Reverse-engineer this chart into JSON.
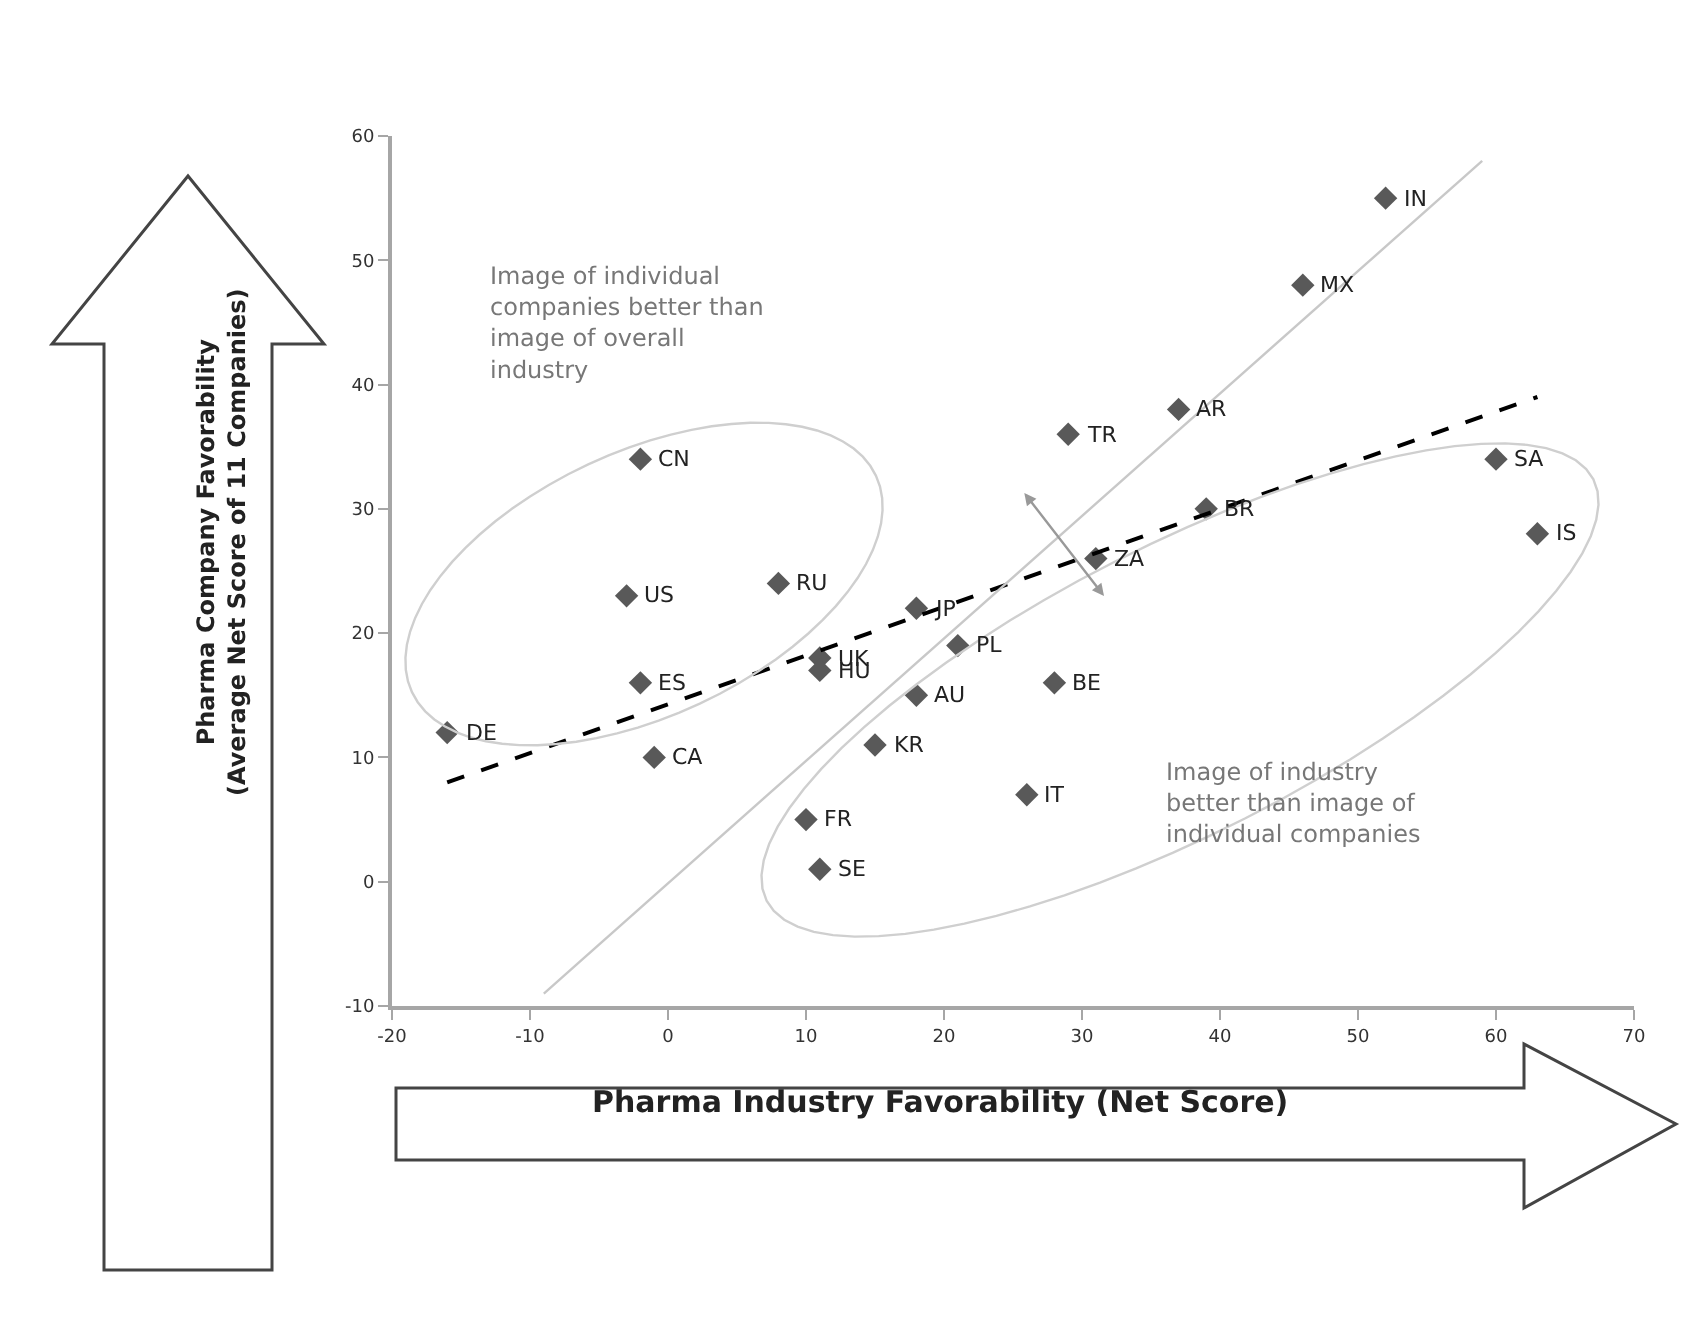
{
  "chart_data": {
    "type": "scatter",
    "xlabel": "Pharma Industry Favorability (Net Score)",
    "ylabel": "Pharma Company Favorability\n(Average Net Score of 11 Companies)",
    "x": [
      52,
      46,
      37,
      29,
      -2,
      60,
      39,
      31,
      63,
      8,
      -3,
      18,
      21,
      11,
      11,
      -2,
      28,
      18,
      -16,
      15,
      -1,
      26,
      10,
      11
    ],
    "series": [
      {
        "type": "scatter",
        "color": "#595959",
        "marker": "diamond",
        "values": [
          55,
          48,
          38,
          36,
          34,
          34,
          30,
          26,
          28,
          24,
          23,
          22,
          19,
          18,
          17,
          16,
          16,
          15,
          12,
          11,
          10,
          7,
          5,
          1
        ]
      },
      {
        "type": "line",
        "color": "#000000",
        "line_style": "dashed",
        "marker": "none",
        "x": [
          -16,
          63
        ],
        "values": [
          8,
          39
        ]
      },
      {
        "type": "line",
        "color": "#c8c8c8",
        "line_style": "solid",
        "marker": "none",
        "x": [
          -9,
          59
        ],
        "values": [
          -9,
          58
        ]
      }
    ],
    "annotations": [
      "Image of individual\ncompanies better than\nimage of overall\nindustry",
      "Image of industry\nbetter than image of\nindividual companies",
      {
        "text": "IN",
        "x": 52,
        "y": 55
      },
      {
        "text": "MX",
        "x": 46,
        "y": 48
      },
      {
        "text": "AR",
        "x": 37,
        "y": 38
      },
      {
        "text": "TR",
        "x": 29,
        "y": 36
      },
      {
        "text": "CN",
        "x": -2,
        "y": 34
      },
      {
        "text": "SA",
        "x": 60,
        "y": 34
      },
      {
        "text": "BR",
        "x": 39,
        "y": 30
      },
      {
        "text": "ZA",
        "x": 31,
        "y": 26
      },
      {
        "text": "IS",
        "x": 63,
        "y": 28
      },
      {
        "text": "RU",
        "x": 8,
        "y": 24
      },
      {
        "text": "US",
        "x": -3,
        "y": 23
      },
      {
        "text": "JP",
        "x": 18,
        "y": 22
      },
      {
        "text": "PL",
        "x": 21,
        "y": 19
      },
      {
        "text": "UK",
        "x": 11,
        "y": 18
      },
      {
        "text": "HU",
        "x": 11,
        "y": 17
      },
      {
        "text": "ES",
        "x": -2,
        "y": 16
      },
      {
        "text": "BE",
        "x": 28,
        "y": 16
      },
      {
        "text": "AU",
        "x": 18,
        "y": 15
      },
      {
        "text": "DE",
        "x": -16,
        "y": 12
      },
      {
        "text": "KR",
        "x": 15,
        "y": 11
      },
      {
        "text": "CA",
        "x": -1,
        "y": 10
      },
      {
        "text": "IT",
        "x": 26,
        "y": 7
      },
      {
        "text": "FR",
        "x": 10,
        "y": 5
      },
      {
        "text": "SE",
        "x": 11,
        "y": 1
      }
    ],
    "xlim": [
      -20,
      70
    ],
    "xticks": [
      -20,
      -10,
      0,
      10,
      20,
      30,
      40,
      50,
      60,
      70
    ],
    "ylim": [
      -10,
      60
    ],
    "yticks": [
      -10,
      0,
      10,
      20,
      30,
      40,
      50,
      60
    ]
  }
}
